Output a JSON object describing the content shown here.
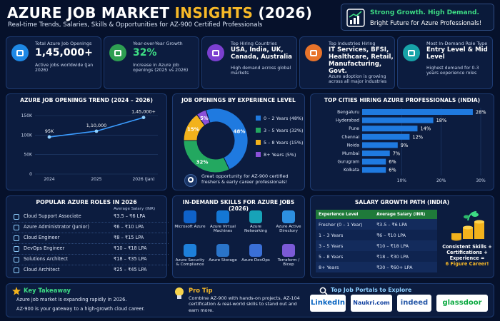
{
  "title_main": "AZURE JOB MARKET",
  "title_accent": "INSIGHTS",
  "title_year": "(2026)",
  "subtitle": "Real-time Trends, Salaries, Skills & Opportunities for AZ-900 Certified Professionals",
  "badge": {
    "line1": "Strong Growth. High Demand.",
    "line2": "Bright Future for Azure Professionals!"
  },
  "kpis": [
    {
      "label": "Total Azure Job Openings",
      "value": "1,45,000+",
      "note": "Active jobs worldwide (Jan 2026)",
      "icon": "briefcase-icon",
      "color": "#1e88e5"
    },
    {
      "label": "Year-over-Year Growth",
      "value": "32%",
      "note": "Increase in Azure job openings (2025 vs 2026)",
      "icon": "trend-up-icon",
      "color": "#2e9e52"
    },
    {
      "label": "Top Hiring Countries",
      "value": "USA, India, UK, Canada, Australia",
      "note": "High demand across global markets",
      "icon": "location-pin-icon",
      "color": "#7b3fd0"
    },
    {
      "label": "Top Industries Hiring",
      "value": "IT Services, BFSI, Healthcare, Retail, Manufacturing, Govt.",
      "note": "Azure adoption is growing across all major industries",
      "icon": "building-icon",
      "color": "#e8732a"
    },
    {
      "label": "Most In-Demand Role Type",
      "value": "Entry Level & Mid Level",
      "note": "Highest demand for 0-3 years experience roles",
      "icon": "people-icon",
      "color": "#17a3a8"
    }
  ],
  "trend": {
    "title": "AZURE JOB OPENINGS TREND (2024 – 2026)",
    "yticks": [
      "150K",
      "100K",
      "50K",
      "0"
    ],
    "points": [
      {
        "x": "2024",
        "y": 95000,
        "label": "95K"
      },
      {
        "x": "2025",
        "y": 110000,
        "label": "1,10,000"
      },
      {
        "x": "2026 (Jan)",
        "y": 145000,
        "label": "1,45,000+"
      }
    ]
  },
  "experience": {
    "title": "JOB OPENINGS BY EXPERIENCE LEVEL",
    "slices": [
      {
        "legend": "0 – 2 Years (48%)",
        "value": 48,
        "label": "48%",
        "color": "#1f7ae0"
      },
      {
        "legend": "3 – 5 Years (32%)",
        "value": 32,
        "label": "32%",
        "color": "#23a860"
      },
      {
        "legend": "5 – 8 Years (15%)",
        "value": 15,
        "label": "15%",
        "color": "#f2b21c"
      },
      {
        "legend": "8+ Years (5%)",
        "value": 5,
        "label": "5%",
        "color": "#8b50d8"
      }
    ],
    "note": "Great opportunity for AZ-900 certified freshers & early career professionals!"
  },
  "cities": {
    "title": "TOP CITIES HIRING AZURE PROFESSIONALS (INDIA)",
    "items": [
      {
        "city": "Bengaluru",
        "value": 28,
        "label": "28%"
      },
      {
        "city": "Hyderabad",
        "value": 18,
        "label": "18%"
      },
      {
        "city": "Pune",
        "value": 14,
        "label": "14%"
      },
      {
        "city": "Chennai",
        "value": 12,
        "label": "12%"
      },
      {
        "city": "Noida",
        "value": 9,
        "label": "9%"
      },
      {
        "city": "Mumbai",
        "value": 7,
        "label": "7%"
      },
      {
        "city": "Gurugram",
        "value": 6,
        "label": "6%"
      },
      {
        "city": "Kolkata",
        "value": 6,
        "label": "6%"
      }
    ],
    "xticks": [
      "10%",
      "20%",
      "30%"
    ]
  },
  "roles": {
    "title": "POPULAR AZURE ROLES IN 2026",
    "salary_header": "Average Salary (INR)",
    "items": [
      {
        "role": "Cloud Support Associate",
        "salary": "₹3.5 – ₹6 LPA"
      },
      {
        "role": "Azure Administrator (Junior)",
        "salary": "₹6 – ₹10 LPA"
      },
      {
        "role": "Cloud Engineer",
        "salary": "₹8 – ₹15 LPA"
      },
      {
        "role": "DevOps Engineer",
        "salary": "₹10 – ₹18 LPA"
      },
      {
        "role": "Solutions Architect",
        "salary": "₹18 – ₹35 LPA"
      },
      {
        "role": "Cloud Architect",
        "salary": "₹25 – ₹45 LPA"
      }
    ]
  },
  "skills": {
    "title": "IN-DEMAND SKILLS FOR AZURE JOBS (2026)",
    "items": [
      {
        "name": "Microsoft Azure",
        "color": "#0f62c9"
      },
      {
        "name": "Azure Virtual Machines",
        "color": "#1477d4"
      },
      {
        "name": "Azure Networking",
        "color": "#17a3b8"
      },
      {
        "name": "Azure Active Directory",
        "color": "#2d8fe0"
      },
      {
        "name": "Azure Security & Compliance",
        "color": "#1e80da"
      },
      {
        "name": "Azure Storage",
        "color": "#2a74c9"
      },
      {
        "name": "Azure DevOps",
        "color": "#3a6fd6"
      },
      {
        "name": "Terraform / Bicep",
        "color": "#7b5ad6"
      }
    ]
  },
  "salary_path": {
    "title": "SALARY GROWTH PATH (INDIA)",
    "headers": [
      "Experience Level",
      "Average Salary (INR)"
    ],
    "rows": [
      [
        "Fresher (0 – 1 Year)",
        "₹3.5 – ₹6 LPA"
      ],
      [
        "1 – 3 Years",
        "₹6 – ₹10 LPA"
      ],
      [
        "3 – 5 Years",
        "₹10 – ₹18 LPA"
      ],
      [
        "5 – 8 Years",
        "₹18 – ₹30 LPA"
      ],
      [
        "8+ Years",
        "₹30 – ₹60+ LPA"
      ]
    ],
    "caption1": "Consistent Skills +",
    "caption2": "Certifications +",
    "caption3": "Experience =",
    "caption4": "6 Figure Career!"
  },
  "takeaway": {
    "title": "Key Takeaway",
    "line1": "Azure job market is expanding rapidly in 2026.",
    "line2": "AZ-900 is your gateway to a high-growth cloud career."
  },
  "protip": {
    "title": "Pro Tip",
    "text": "Combine AZ-900 with hands-on projects, AZ-104 certification & real-world skills to stand out and earn more."
  },
  "portals": {
    "title": "Top Job Portals to Explore",
    "items": [
      "LinkedIn",
      "Naukri.com",
      "indeed",
      "glassdoor"
    ]
  }
}
